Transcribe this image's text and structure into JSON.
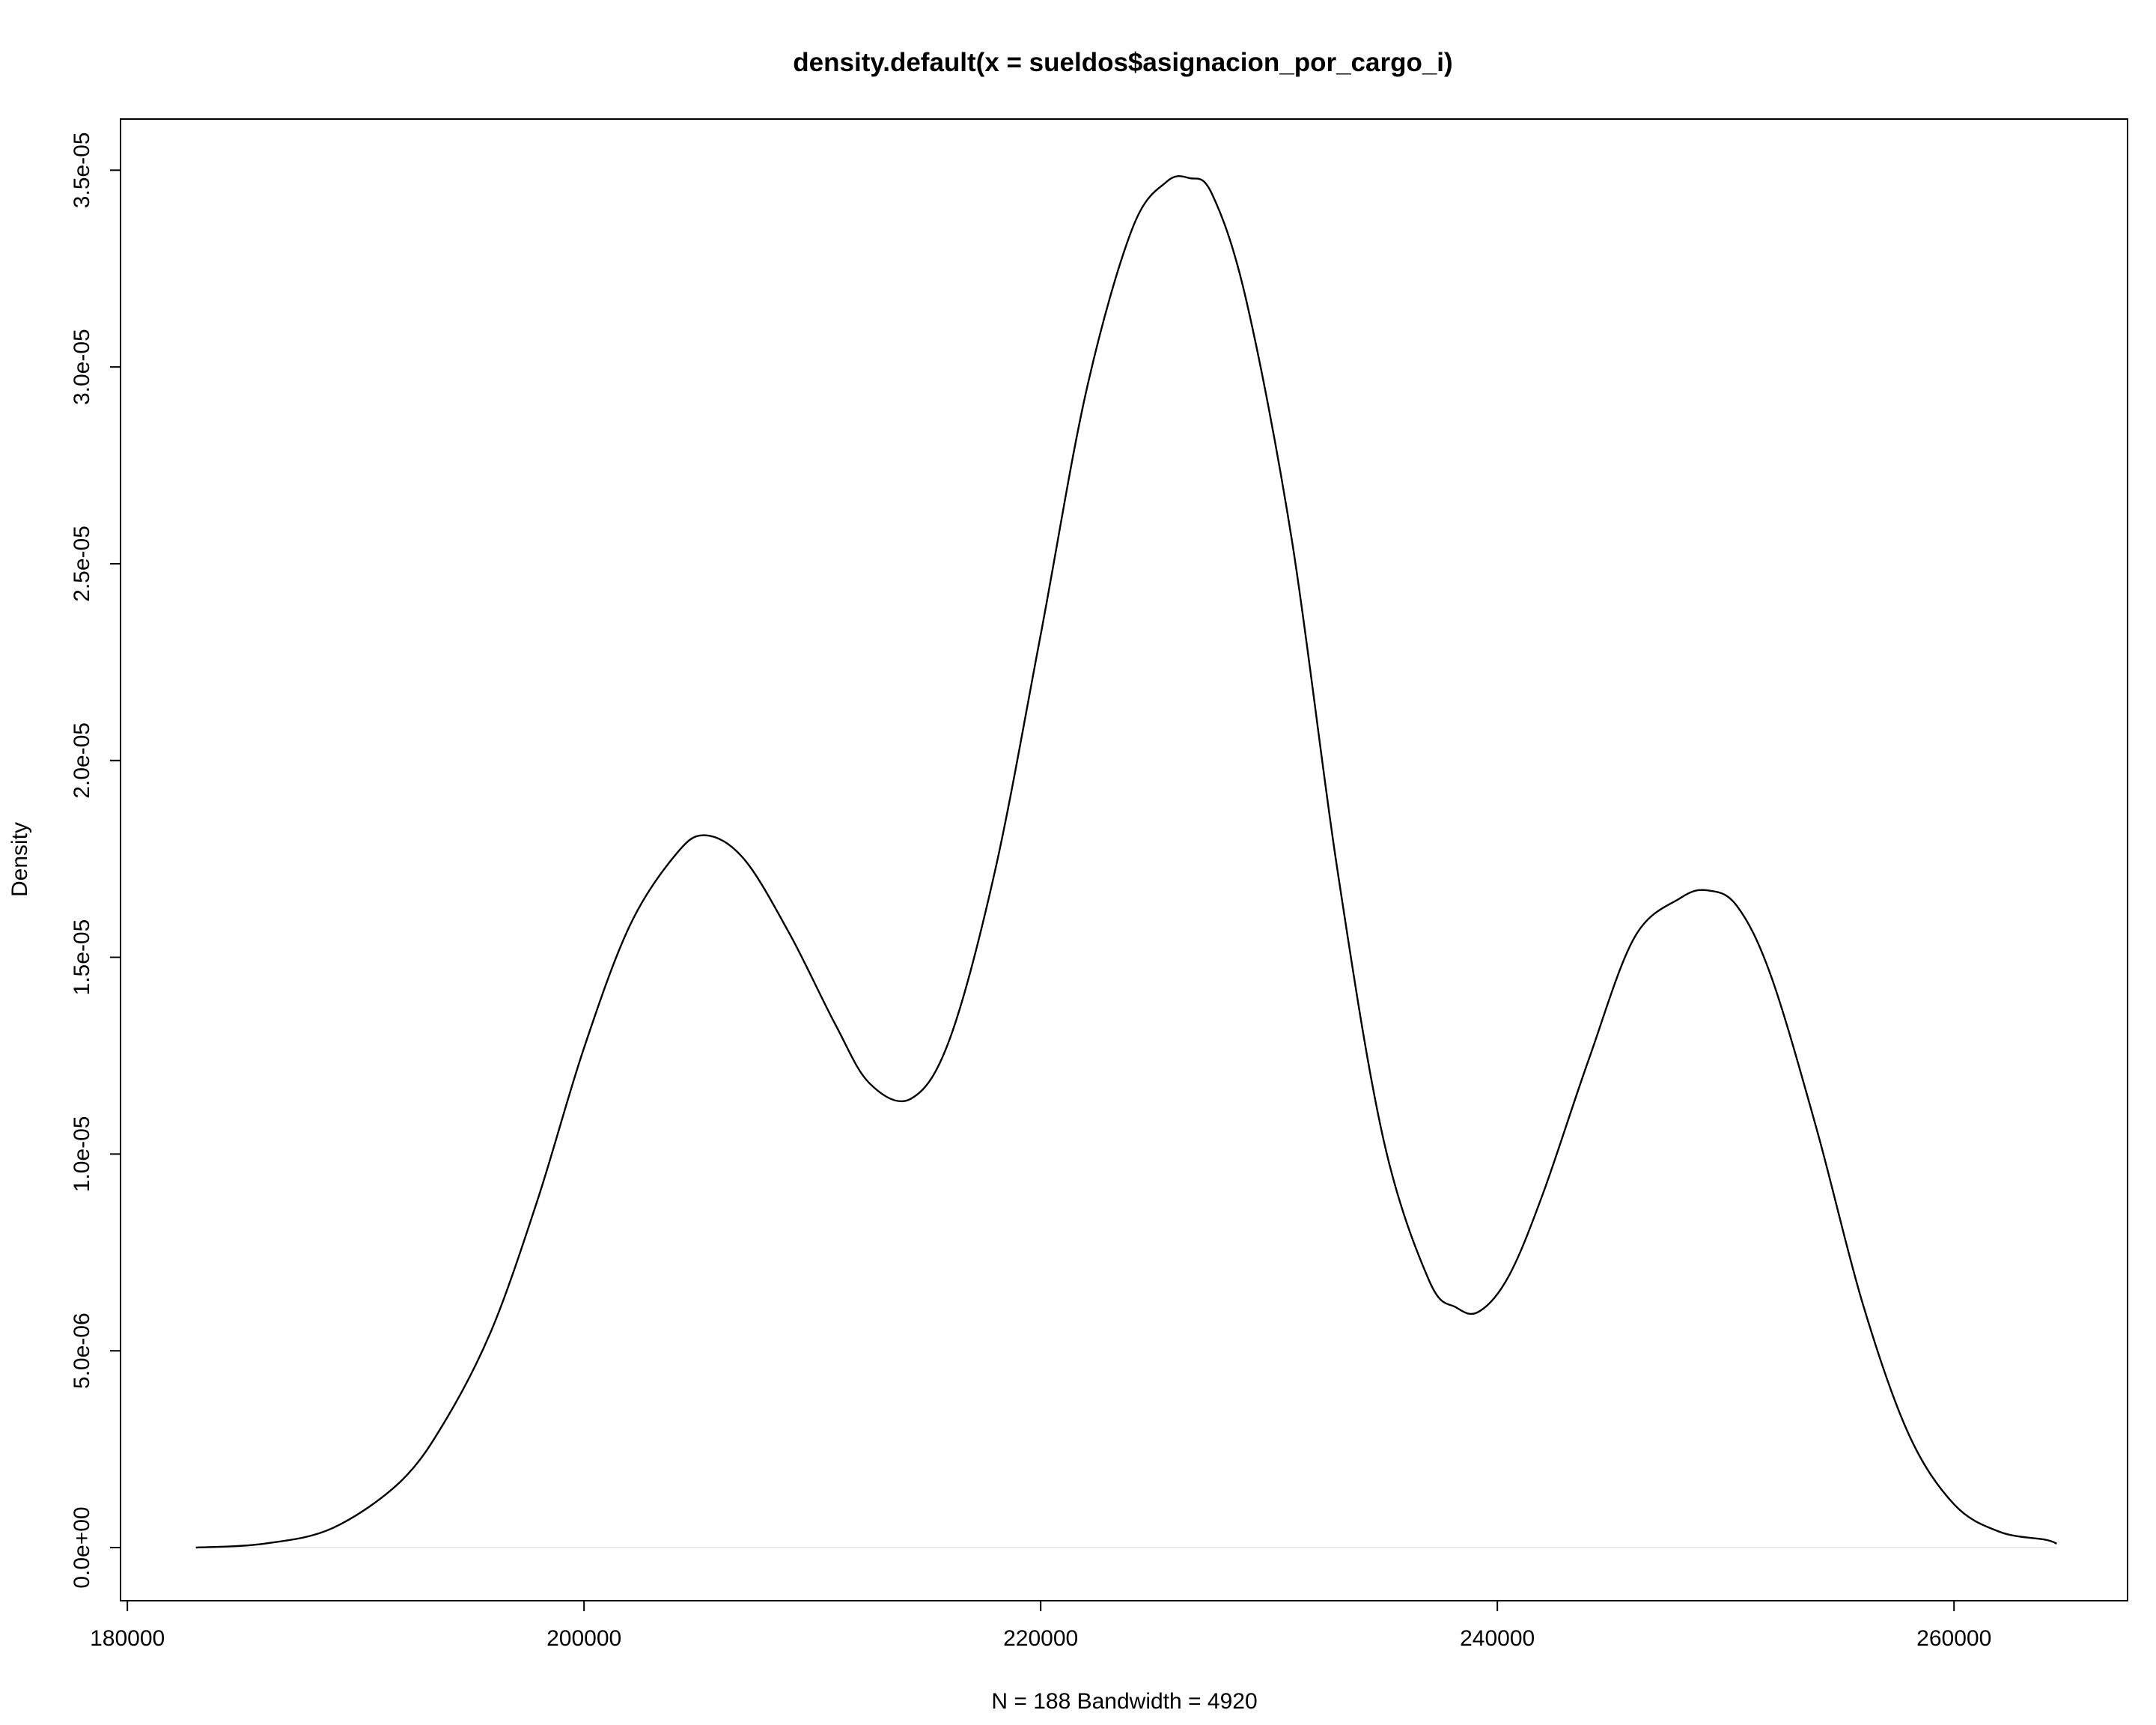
{
  "chart_data": {
    "type": "line",
    "title": "density.default(x = sueldos$asignacion_por_cargo_i)",
    "xlabel": "N = 188   Bandwidth = 4920",
    "ylabel": "Density",
    "xlim": [
      179700,
      267600
    ],
    "ylim": [
      -1.35e-06,
      3.63e-05
    ],
    "x_ticks": [
      {
        "value": 180000,
        "label": "180000"
      },
      {
        "value": 200000,
        "label": "200000"
      },
      {
        "value": 220000,
        "label": "220000"
      },
      {
        "value": 240000,
        "label": "240000"
      },
      {
        "value": 260000,
        "label": "260000"
      }
    ],
    "y_ticks": [
      {
        "value": 0,
        "label": "0.0e+00"
      },
      {
        "value": 5e-06,
        "label": "5.0e-06"
      },
      {
        "value": 1e-05,
        "label": "1.0e-05"
      },
      {
        "value": 1.5e-05,
        "label": "1.5e-05"
      },
      {
        "value": 2e-05,
        "label": "2.0e-05"
      },
      {
        "value": 2.5e-05,
        "label": "2.5e-05"
      },
      {
        "value": 3e-05,
        "label": "3.0e-05"
      },
      {
        "value": 3.5e-05,
        "label": "3.5e-05"
      }
    ],
    "series": [
      {
        "x": [
          183000,
          186000,
          189000,
          192000,
          194000,
          196000,
          198000,
          200000,
          202000,
          204000,
          205300,
          207000,
          209000,
          211000,
          212500,
          214300,
          216000,
          218000,
          220000,
          222000,
          224000,
          225500,
          226500,
          227500,
          229000,
          231000,
          233000,
          235000,
          237000,
          238200,
          239200,
          240500,
          242000,
          244000,
          246000,
          248000,
          249200,
          250500,
          252000,
          254000,
          256000,
          258000,
          260000,
          262000,
          264000,
          264500
        ],
        "y": [
          0.0,
          1e-07,
          5e-07,
          1.7e-06,
          3.3e-06,
          5.6e-06,
          8.9e-06,
          1.27e-05,
          1.58e-05,
          1.76e-05,
          1.81e-05,
          1.75e-05,
          1.56e-05,
          1.33e-05,
          1.18e-05,
          1.14e-05,
          1.29e-05,
          1.72e-05,
          2.32e-05,
          2.94e-05,
          3.35e-05,
          3.47e-05,
          3.48e-05,
          3.44e-05,
          3.17e-05,
          2.56e-05,
          1.72e-05,
          1.04e-05,
          6.8e-06,
          6.1e-06,
          6e-06,
          6.9e-06,
          9e-06,
          1.24e-05,
          1.55e-05,
          1.65e-05,
          1.67e-05,
          1.63e-05,
          1.45e-05,
          1.06e-05,
          6.2e-06,
          2.9e-06,
          1.1e-06,
          4e-07,
          2e-07,
          1e-07
        ]
      }
    ]
  }
}
